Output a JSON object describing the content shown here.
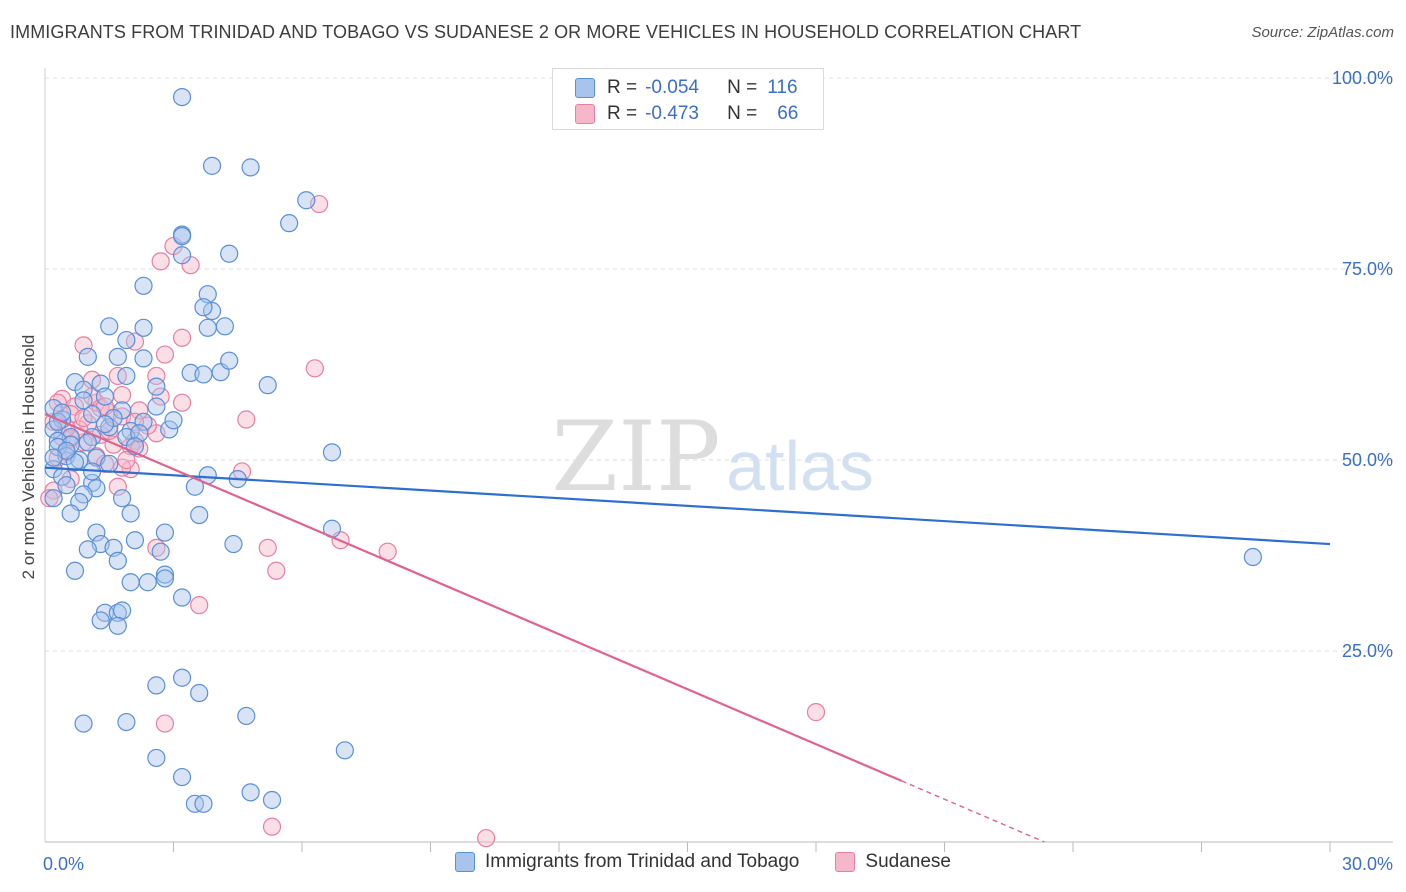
{
  "header": {
    "title": "IMMIGRANTS FROM TRINIDAD AND TOBAGO VS SUDANESE 2 OR MORE VEHICLES IN HOUSEHOLD CORRELATION CHART",
    "source": "Source: ZipAtlas.com"
  },
  "watermark": {
    "zip": "ZIP",
    "atlas": "atlas"
  },
  "stats": [
    {
      "r_label": "R =",
      "r_value": "-0.054",
      "n_label": "N =",
      "n_value": "116"
    },
    {
      "r_label": "R =",
      "r_value": "-0.473",
      "n_label": "N =",
      "n_value": "66"
    }
  ],
  "colors": {
    "blue_fill": "#a9c4ec",
    "blue_stroke": "#5a8fd8",
    "blue_line": "#2e6fcf",
    "pink_fill": "#f6b7ca",
    "pink_stroke": "#e77fa0",
    "pink_line": "#e0628f",
    "axis_label": "#3b6fc7",
    "grid": "#dcdcdc"
  },
  "chart_data": {
    "type": "scatter",
    "xlabel": "",
    "ylabel": "2 or more Vehicles in Household",
    "xlim": [
      0,
      30
    ],
    "ylim": [
      0,
      100
    ],
    "x_tick_labels": [
      "0.0%",
      "30.0%"
    ],
    "y_tick_labels": [
      "25.0%",
      "50.0%",
      "75.0%",
      "100.0%"
    ],
    "y_ticks": [
      25,
      50,
      75,
      100
    ],
    "grid": true,
    "series": [
      {
        "name": "Immigrants from Trinidad and Tobago",
        "color": "blue",
        "trend": {
          "x": [
            0,
            30
          ],
          "y": [
            49.0,
            39.0
          ]
        },
        "points": [
          [
            3.2,
            97.5
          ],
          [
            3.9,
            88.5
          ],
          [
            4.8,
            88.3
          ],
          [
            6.1,
            84.0
          ],
          [
            5.7,
            81.0
          ],
          [
            3.2,
            79.5
          ],
          [
            3.2,
            79.3
          ],
          [
            4.3,
            77.0
          ],
          [
            3.2,
            76.8
          ],
          [
            2.3,
            72.8
          ],
          [
            3.8,
            71.7
          ],
          [
            1.5,
            67.5
          ],
          [
            2.3,
            67.3
          ],
          [
            3.8,
            67.3
          ],
          [
            4.2,
            67.5
          ],
          [
            1.9,
            65.7
          ],
          [
            1.0,
            63.5
          ],
          [
            1.7,
            63.5
          ],
          [
            2.3,
            63.3
          ],
          [
            4.1,
            61.5
          ],
          [
            3.4,
            61.4
          ],
          [
            3.7,
            61.2
          ],
          [
            1.9,
            61.0
          ],
          [
            5.2,
            59.8
          ],
          [
            0.7,
            60.2
          ],
          [
            1.3,
            60.0
          ],
          [
            2.6,
            59.6
          ],
          [
            0.9,
            59.2
          ],
          [
            1.4,
            58.3
          ],
          [
            0.2,
            56.8
          ],
          [
            1.8,
            56.5
          ],
          [
            1.1,
            56.0
          ],
          [
            0.4,
            55.3
          ],
          [
            2.3,
            55.0
          ],
          [
            2.9,
            54.0
          ],
          [
            0.2,
            54.0
          ],
          [
            1.5,
            54.3
          ],
          [
            2.0,
            53.8
          ],
          [
            0.6,
            53.0
          ],
          [
            1.1,
            53.0
          ],
          [
            1.9,
            53.0
          ],
          [
            0.3,
            52.5
          ],
          [
            0.6,
            52.0
          ],
          [
            6.7,
            51.0
          ],
          [
            0.3,
            51.7
          ],
          [
            0.5,
            50.5
          ],
          [
            1.2,
            50.3
          ],
          [
            0.8,
            50.0
          ],
          [
            1.5,
            49.5
          ],
          [
            0.2,
            48.8
          ],
          [
            0.4,
            47.8
          ],
          [
            3.8,
            48.0
          ],
          [
            4.5,
            47.5
          ],
          [
            1.1,
            47.0
          ],
          [
            0.5,
            46.7
          ],
          [
            3.5,
            46.5
          ],
          [
            1.2,
            46.3
          ],
          [
            0.9,
            45.5
          ],
          [
            0.2,
            45.0
          ],
          [
            1.8,
            45.0
          ],
          [
            0.8,
            44.5
          ],
          [
            0.6,
            43.0
          ],
          [
            2.0,
            43.0
          ],
          [
            3.6,
            42.8
          ],
          [
            1.2,
            40.5
          ],
          [
            2.8,
            40.5
          ],
          [
            6.7,
            41.0
          ],
          [
            1.3,
            39.0
          ],
          [
            2.1,
            39.5
          ],
          [
            4.4,
            39.0
          ],
          [
            1.0,
            38.3
          ],
          [
            1.6,
            38.5
          ],
          [
            2.7,
            38.0
          ],
          [
            1.7,
            36.8
          ],
          [
            0.7,
            35.5
          ],
          [
            2.8,
            35.0
          ],
          [
            2.8,
            34.5
          ],
          [
            2.0,
            34.0
          ],
          [
            2.4,
            34.0
          ],
          [
            3.2,
            32.0
          ],
          [
            1.4,
            30.0
          ],
          [
            1.7,
            30.0
          ],
          [
            1.8,
            30.3
          ],
          [
            1.3,
            29.0
          ],
          [
            1.7,
            28.3
          ],
          [
            3.2,
            21.5
          ],
          [
            2.6,
            20.5
          ],
          [
            3.6,
            19.5
          ],
          [
            0.9,
            15.5
          ],
          [
            1.9,
            15.7
          ],
          [
            4.7,
            16.5
          ],
          [
            2.6,
            11.0
          ],
          [
            7.0,
            12.0
          ],
          [
            3.2,
            8.5
          ],
          [
            4.8,
            6.5
          ],
          [
            3.5,
            5.0
          ],
          [
            3.7,
            5.0
          ],
          [
            5.3,
            5.5
          ],
          [
            28.2,
            37.3
          ],
          [
            0.3,
            55.0
          ],
          [
            1.0,
            52.3
          ],
          [
            0.7,
            49.7
          ],
          [
            2.2,
            53.5
          ],
          [
            1.6,
            55.5
          ],
          [
            0.5,
            51.2
          ],
          [
            0.2,
            50.3
          ],
          [
            2.6,
            57.0
          ],
          [
            3.9,
            69.5
          ],
          [
            3.7,
            70.0
          ],
          [
            1.4,
            54.7
          ],
          [
            0.9,
            57.8
          ],
          [
            4.3,
            63.0
          ],
          [
            2.1,
            51.8
          ],
          [
            0.4,
            56.2
          ],
          [
            1.1,
            48.5
          ],
          [
            3.0,
            55.2
          ]
        ]
      },
      {
        "name": "Sudanese",
        "color": "pink",
        "trend": {
          "x": [
            0,
            20
          ],
          "y": [
            56.0,
            8.0
          ]
        },
        "points": [
          [
            6.4,
            83.5
          ],
          [
            3.0,
            78.0
          ],
          [
            2.7,
            76.0
          ],
          [
            3.4,
            75.5
          ],
          [
            3.2,
            66.0
          ],
          [
            0.9,
            65.0
          ],
          [
            2.1,
            65.5
          ],
          [
            2.8,
            63.8
          ],
          [
            6.3,
            62.0
          ],
          [
            1.1,
            60.5
          ],
          [
            1.7,
            61.0
          ],
          [
            1.8,
            58.5
          ],
          [
            2.7,
            58.3
          ],
          [
            3.2,
            57.5
          ],
          [
            0.4,
            58.0
          ],
          [
            0.7,
            57.0
          ],
          [
            1.2,
            57.5
          ],
          [
            2.2,
            56.5
          ],
          [
            0.6,
            56.0
          ],
          [
            1.5,
            56.2
          ],
          [
            1.8,
            55.7
          ],
          [
            4.7,
            55.3
          ],
          [
            0.2,
            55.0
          ],
          [
            1.0,
            54.8
          ],
          [
            2.6,
            53.5
          ],
          [
            1.3,
            53.3
          ],
          [
            0.4,
            53.0
          ],
          [
            2.1,
            52.5
          ],
          [
            0.9,
            52.3
          ],
          [
            1.6,
            52.0
          ],
          [
            2.0,
            51.8
          ],
          [
            2.2,
            51.5
          ],
          [
            0.5,
            51.0
          ],
          [
            1.2,
            50.5
          ],
          [
            0.3,
            50.3
          ],
          [
            1.4,
            49.5
          ],
          [
            2.0,
            48.8
          ],
          [
            4.6,
            48.5
          ],
          [
            1.8,
            49.0
          ],
          [
            0.6,
            47.5
          ],
          [
            1.7,
            46.5
          ],
          [
            0.2,
            46.0
          ],
          [
            0.1,
            45.0
          ],
          [
            6.9,
            39.5
          ],
          [
            8.0,
            38.0
          ],
          [
            2.6,
            38.5
          ],
          [
            5.2,
            38.5
          ],
          [
            5.4,
            35.5
          ],
          [
            3.6,
            31.0
          ],
          [
            18.0,
            17.0
          ],
          [
            2.8,
            15.5
          ],
          [
            5.3,
            2.0
          ],
          [
            10.3,
            0.5
          ],
          [
            0.8,
            54.0
          ],
          [
            1.5,
            53.8
          ],
          [
            2.4,
            54.5
          ],
          [
            0.3,
            57.5
          ],
          [
            1.1,
            58.3
          ],
          [
            1.9,
            50.0
          ],
          [
            0.6,
            52.8
          ],
          [
            2.6,
            61.0
          ],
          [
            1.3,
            56.8
          ],
          [
            0.9,
            55.5
          ],
          [
            2.1,
            55.0
          ],
          [
            1.4,
            57.0
          ],
          [
            0.5,
            54.2
          ]
        ]
      }
    ]
  }
}
